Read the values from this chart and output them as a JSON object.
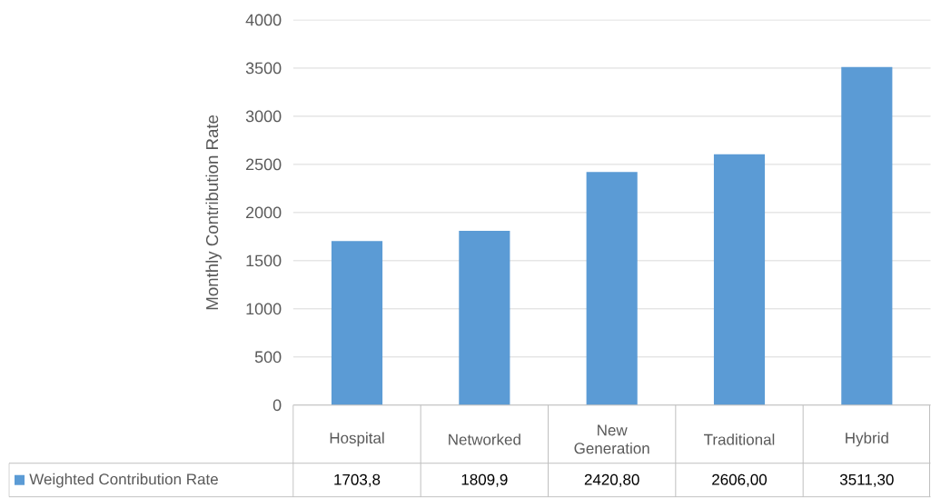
{
  "chart_data": {
    "type": "bar",
    "ylabel": "Monthly Contribution Rate",
    "categories": [
      "Hospital",
      "Networked",
      "New Generation",
      "Traditional",
      "Hybrid"
    ],
    "series": [
      {
        "name": "Weighted Contribution Rate",
        "color": "#5b9bd5",
        "values": [
          1703.8,
          1809.9,
          2420.8,
          2606.0,
          3511.3
        ],
        "value_labels": [
          "1703,8",
          "1809,9",
          "2420,80",
          "2606,00",
          "3511,30"
        ]
      }
    ],
    "ylim": [
      0,
      4000
    ],
    "yticks": [
      0,
      500,
      1000,
      1500,
      2000,
      2500,
      3000,
      3500,
      4000
    ],
    "grid": "y",
    "legend": "bottom"
  }
}
